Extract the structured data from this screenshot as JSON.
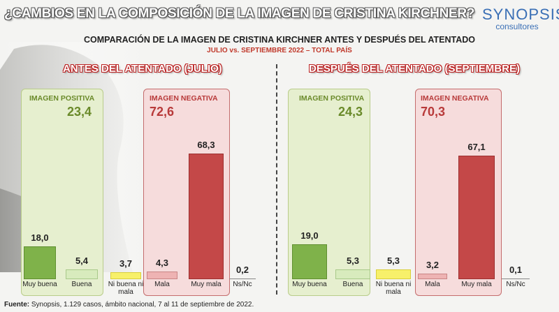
{
  "title": "¿CAMBIOS EN LA COMPOSICIÓN DE LA IMAGEN DE CRISTINA KIRCHNER?",
  "logo": {
    "name": "SYNOPSIS",
    "sub": "consultores"
  },
  "subtitle": "COMPARACIÓN DE LA IMAGEN DE CRISTINA KIRCHNER ANTES Y DESPUÉS DEL ATENTADO",
  "subtitle2": "JULIO vs. SEPTIEMBRE 2022 – TOTAL PAÍS",
  "colors": {
    "muy_buena": "#7fb24a",
    "buena": "#d8ebbd",
    "ni": "#f7f06a",
    "mala": "#eeb3b3",
    "muy_mala": "#c44848"
  },
  "chart_data": [
    {
      "type": "bar",
      "title": "ANTES DEL ATENTADO (JULIO)",
      "categories": [
        "Muy buena",
        "Buena",
        "Ni buena ni mala",
        "Mala",
        "Muy mala",
        "Ns/Nc"
      ],
      "values": [
        18.0,
        5.4,
        3.7,
        4.3,
        68.3,
        0.2
      ],
      "value_labels": [
        "18,0",
        "5,4",
        "3,7",
        "4,3",
        "68,3",
        "0,2"
      ],
      "groups": {
        "positive": {
          "label": "IMAGEN POSITIVA",
          "value": "23,4"
        },
        "negative": {
          "label": "IMAGEN NEGATIVA",
          "value": "72,6"
        }
      }
    },
    {
      "type": "bar",
      "title": "DESPUÉS DEL ATENTADO (SEPTIEMBRE)",
      "categories": [
        "Muy buena",
        "Buena",
        "Ni buena ni mala",
        "Mala",
        "Muy mala",
        "Ns/Nc"
      ],
      "values": [
        19.0,
        5.3,
        5.3,
        3.2,
        67.1,
        0.1
      ],
      "value_labels": [
        "19,0",
        "5,3",
        "5,3",
        "3,2",
        "67,1",
        "0,1"
      ],
      "groups": {
        "positive": {
          "label": "IMAGEN POSITIVA",
          "value": "24,3"
        },
        "negative": {
          "label": "IMAGEN NEGATIVA",
          "value": "70,3"
        }
      }
    }
  ],
  "footer": {
    "bold": "Fuente:",
    "text": " Synopsis, 1.129 casos, ámbito nacional, 7 al 11 de septiembre de 2022."
  }
}
